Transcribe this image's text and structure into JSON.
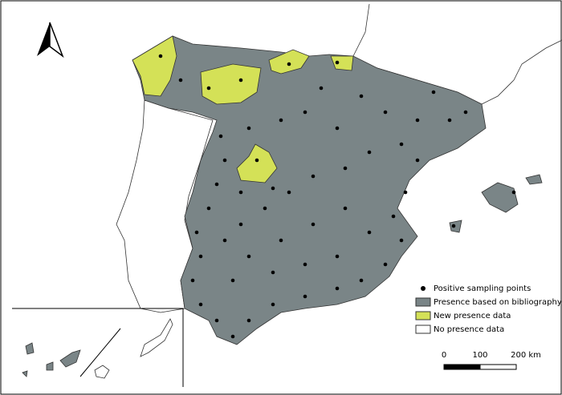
{
  "legend": {
    "items": [
      {
        "label": "Positive sampling points"
      },
      {
        "label": "Presence based on bibliography"
      },
      {
        "label": "New presence data"
      },
      {
        "label": "No presence data"
      }
    ]
  },
  "scale_bar": {
    "labels": [
      "0",
      "100",
      "200 km"
    ]
  }
}
